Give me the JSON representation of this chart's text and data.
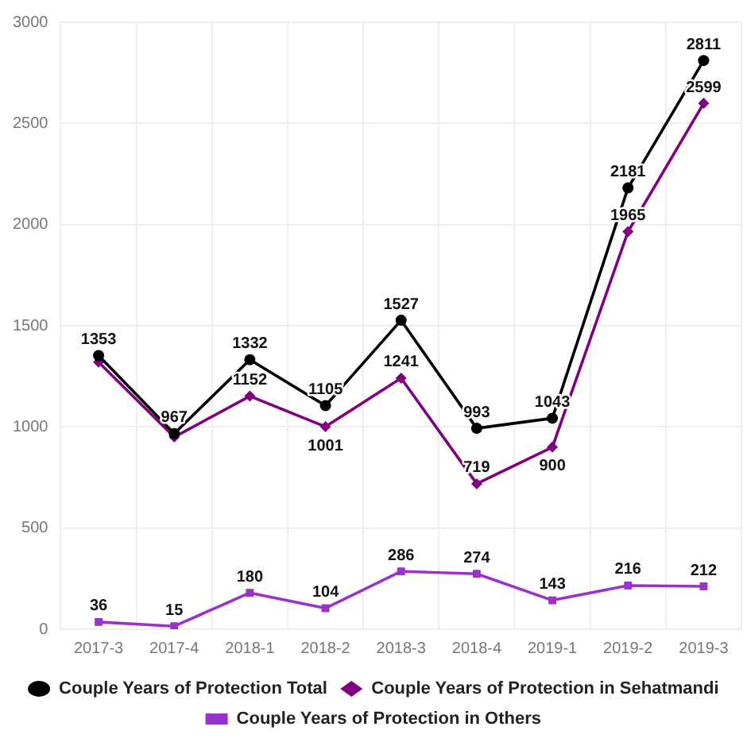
{
  "chart_data": {
    "type": "line",
    "categories": [
      "2017-3",
      "2017-4",
      "2018-1",
      "2018-2",
      "2018-3",
      "2018-4",
      "2019-1",
      "2019-2",
      "2019-3"
    ],
    "series": [
      {
        "name": "Couple Years of Protection Total",
        "color": "#000000",
        "marker": "circle",
        "values": [
          1353,
          967,
          1332,
          1105,
          1527,
          993,
          1043,
          2181,
          2811
        ],
        "value_labels": [
          "1353",
          "967",
          "1332",
          "1105",
          "1527",
          "993",
          "1043",
          "2181",
          "2811"
        ]
      },
      {
        "name": "Couple Years of Protection in Sehatmandi",
        "color": "#800080",
        "marker": "diamond",
        "values": [
          1320,
          950,
          1152,
          1001,
          1241,
          719,
          900,
          1965,
          2599
        ],
        "value_labels": [
          null,
          null,
          "1152",
          "1001",
          "1241",
          "719",
          "900",
          "1965",
          "2599"
        ]
      },
      {
        "name": "Couple Years of Protection in Others",
        "color": "#9932cc",
        "marker": "square",
        "values": [
          36,
          15,
          180,
          104,
          286,
          274,
          143,
          216,
          212
        ],
        "value_labels": [
          "36",
          "15",
          "180",
          "104",
          "286",
          "274",
          "143",
          "216",
          "212"
        ]
      }
    ],
    "ylim": [
      0,
      3000
    ],
    "yticks": [
      0,
      500,
      1000,
      1500,
      2000,
      2500,
      3000
    ],
    "grid": true,
    "legend": "bottom"
  }
}
